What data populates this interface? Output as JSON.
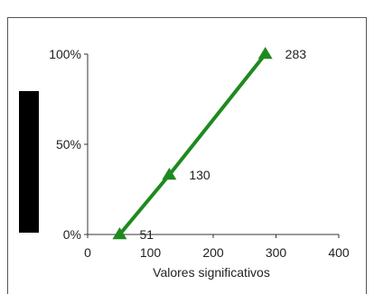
{
  "chart_data": {
    "type": "line",
    "title": "",
    "xlabel": "Valores significativos",
    "ylabel": "",
    "xlim": [
      0,
      400
    ],
    "ylim": [
      0,
      100
    ],
    "x_ticks": [
      "0",
      "100",
      "200",
      "300",
      "400"
    ],
    "y_ticks": [
      "0%",
      "50%",
      "100%"
    ],
    "grid": false,
    "legend": "none",
    "series": [
      {
        "color": "#1e8a1e",
        "marker": "triangle",
        "points": [
          {
            "x": 51,
            "y": 0,
            "label": "51"
          },
          {
            "x": 130,
            "y": 33,
            "label": "130"
          },
          {
            "x": 283,
            "y": 100,
            "label": "283"
          }
        ]
      }
    ]
  },
  "decoration": {
    "bar_color": "#000000"
  }
}
